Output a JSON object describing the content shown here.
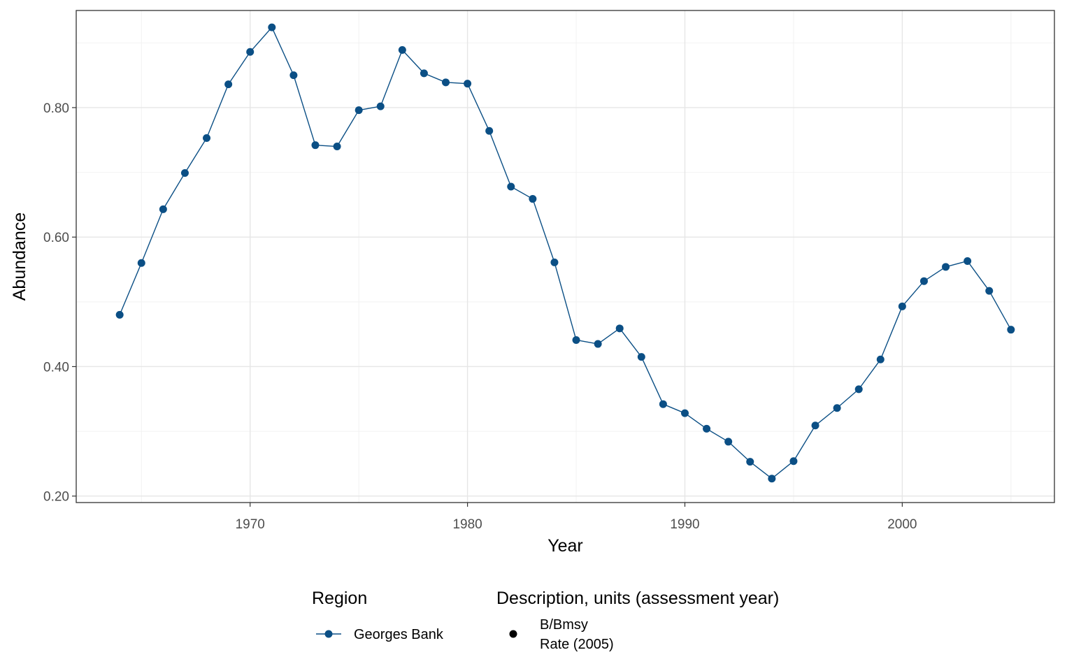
{
  "chart_data": {
    "type": "line",
    "title": "",
    "xlabel": "Year",
    "ylabel": "Abundance",
    "xlim": [
      1962,
      2007
    ],
    "ylim": [
      0.19,
      0.95
    ],
    "x_ticks": [
      1970,
      1980,
      1990,
      2000
    ],
    "x_tick_labels": [
      "1970",
      "1980",
      "1990",
      "2000"
    ],
    "y_ticks": [
      0.2,
      0.4,
      0.6,
      0.8
    ],
    "y_tick_labels": [
      "0.20",
      "0.40",
      "0.60",
      "0.80"
    ],
    "grid": true,
    "legend_position": "bottom",
    "series": [
      {
        "name": "Georges Bank",
        "color": "#0b4f85",
        "x": [
          1964,
          1965,
          1966,
          1967,
          1968,
          1969,
          1970,
          1971,
          1972,
          1973,
          1974,
          1975,
          1976,
          1977,
          1978,
          1979,
          1980,
          1981,
          1982,
          1983,
          1984,
          1985,
          1986,
          1987,
          1988,
          1989,
          1990,
          1991,
          1992,
          1993,
          1994,
          1995,
          1996,
          1997,
          1998,
          1999,
          2000,
          2001,
          2002,
          2003,
          2004,
          2005
        ],
        "y": [
          0.48,
          0.56,
          0.643,
          0.699,
          0.753,
          0.836,
          0.886,
          0.924,
          0.85,
          0.742,
          0.74,
          0.796,
          0.802,
          0.889,
          0.853,
          0.839,
          0.837,
          0.764,
          0.678,
          0.659,
          0.561,
          0.441,
          0.435,
          0.459,
          0.415,
          0.342,
          0.328,
          0.304,
          0.284,
          0.253,
          0.227,
          0.254,
          0.309,
          0.336,
          0.365,
          0.411,
          0.493,
          0.532,
          0.554,
          0.563,
          0.517,
          0.457
        ]
      }
    ],
    "legend": {
      "region_title": "Region",
      "region_items": [
        "Georges Bank"
      ],
      "description_title": "Description, units (assessment year)",
      "description_line1": "B/Bmsy",
      "description_line2": "Rate (2005)"
    }
  }
}
